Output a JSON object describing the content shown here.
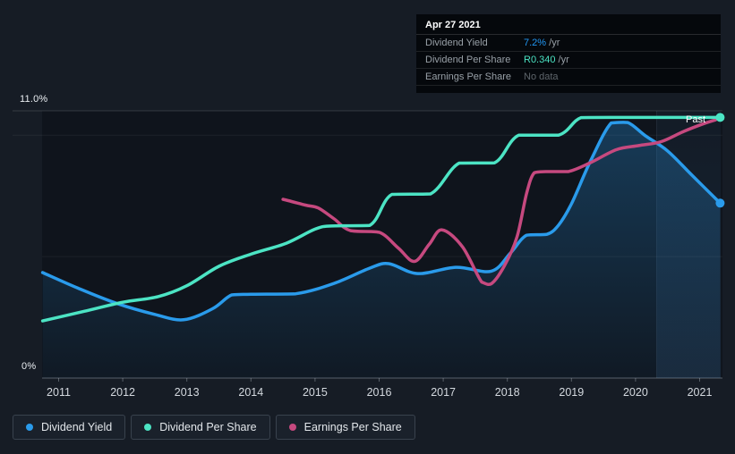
{
  "tooltip": {
    "date": "Apr 27 2021",
    "rows": [
      {
        "label": "Dividend Yield",
        "value": "7.2%",
        "unit": " /yr",
        "value_color": "#2196f3"
      },
      {
        "label": "Dividend Per Share",
        "value": "R0.340",
        "unit": " /yr",
        "value_color": "#4be3c3"
      },
      {
        "label": "Earnings Per Share",
        "value": "No data",
        "unit": "",
        "value_color": "#5e656b"
      }
    ]
  },
  "axis": {
    "y_top_label": "11.0%",
    "y_bottom_label": "0%"
  },
  "past_label": "Past",
  "legend": {
    "items": [
      {
        "label": "Dividend Yield",
        "color": "#2a9beb"
      },
      {
        "label": "Dividend Per Share",
        "color": "#4ce4c4"
      },
      {
        "label": "Earnings Per Share",
        "color": "#c6497f"
      }
    ]
  },
  "chart_data": {
    "type": "line",
    "xlim": [
      2010.75,
      2021.33
    ],
    "ylim": [
      0,
      11
    ],
    "x_ticks": [
      2011,
      2012,
      2013,
      2014,
      2015,
      2016,
      2017,
      2018,
      2019,
      2020,
      2021
    ],
    "y_axis_unit": "%",
    "grid": true,
    "legend_position": "bottom-left",
    "gridlines": [
      {
        "pct": 11,
        "strong": true,
        "x_from": 14
      },
      {
        "pct": 10,
        "strong": false,
        "x_from": 14
      },
      {
        "pct": 5,
        "strong": false,
        "x_from": 47
      },
      {
        "pct": 0,
        "axis": true,
        "x_from": 47
      }
    ],
    "highlight_band": {
      "from_year": 2020.33,
      "to_year": 2021.33
    },
    "series": [
      {
        "name": "Dividend Yield",
        "color": "#2a9beb",
        "area": true,
        "end_dot": true,
        "end_value": "7.2% /yr",
        "points": [
          [
            2010.75,
            4.34
          ],
          [
            2011.3,
            3.7
          ],
          [
            2011.9,
            3.08
          ],
          [
            2012.5,
            2.62
          ],
          [
            2012.95,
            2.4
          ],
          [
            2013.4,
            2.85
          ],
          [
            2013.7,
            3.42
          ],
          [
            2014.0,
            3.45
          ],
          [
            2014.7,
            3.47
          ],
          [
            2015.3,
            3.9
          ],
          [
            2015.85,
            4.52
          ],
          [
            2016.15,
            4.71
          ],
          [
            2016.6,
            4.3
          ],
          [
            2017.2,
            4.56
          ],
          [
            2017.75,
            4.4
          ],
          [
            2018.05,
            5.15
          ],
          [
            2018.3,
            5.88
          ],
          [
            2018.62,
            5.92
          ],
          [
            2018.8,
            6.3
          ],
          [
            2019.0,
            7.17
          ],
          [
            2019.3,
            8.95
          ],
          [
            2019.62,
            10.5
          ],
          [
            2019.88,
            10.52
          ],
          [
            2020.15,
            9.98
          ],
          [
            2020.5,
            9.35
          ],
          [
            2020.88,
            8.35
          ],
          [
            2021.32,
            7.2
          ]
        ]
      },
      {
        "name": "Dividend Per Share",
        "color": "#4ce4c4",
        "area": false,
        "end_dot": true,
        "end_value": "R0.340 /yr",
        "points": [
          [
            2010.75,
            2.35
          ],
          [
            2011.4,
            2.75
          ],
          [
            2012.0,
            3.12
          ],
          [
            2012.55,
            3.35
          ],
          [
            2013.0,
            3.8
          ],
          [
            2013.5,
            4.6
          ],
          [
            2014.0,
            5.1
          ],
          [
            2014.55,
            5.55
          ],
          [
            2015.0,
            6.13
          ],
          [
            2015.25,
            6.26
          ],
          [
            2015.85,
            6.28
          ],
          [
            2016.2,
            7.56
          ],
          [
            2016.8,
            7.58
          ],
          [
            2017.25,
            8.85
          ],
          [
            2017.8,
            8.86
          ],
          [
            2018.18,
            10.0
          ],
          [
            2018.8,
            10.0
          ],
          [
            2019.15,
            10.72
          ],
          [
            2019.6,
            10.73
          ],
          [
            2020.4,
            10.73
          ],
          [
            2021.32,
            10.73
          ]
        ]
      },
      {
        "name": "Earnings Per Share",
        "color": "#c6497f",
        "area": false,
        "end_dot": false,
        "end_value": "No data",
        "points": [
          [
            2014.5,
            7.36
          ],
          [
            2014.85,
            7.12
          ],
          [
            2015.05,
            7.0
          ],
          [
            2015.3,
            6.55
          ],
          [
            2015.55,
            6.07
          ],
          [
            2016.0,
            6.0
          ],
          [
            2016.3,
            5.35
          ],
          [
            2016.55,
            4.8
          ],
          [
            2016.78,
            5.5
          ],
          [
            2016.98,
            6.1
          ],
          [
            2017.3,
            5.4
          ],
          [
            2017.6,
            3.95
          ],
          [
            2017.75,
            3.88
          ],
          [
            2017.95,
            4.6
          ],
          [
            2018.15,
            5.8
          ],
          [
            2018.3,
            7.6
          ],
          [
            2018.42,
            8.45
          ],
          [
            2018.6,
            8.5
          ],
          [
            2018.95,
            8.5
          ],
          [
            2019.3,
            8.87
          ],
          [
            2019.7,
            9.4
          ],
          [
            2020.05,
            9.57
          ],
          [
            2020.4,
            9.73
          ],
          [
            2020.75,
            10.15
          ],
          [
            2021.05,
            10.46
          ],
          [
            2021.25,
            10.63
          ]
        ]
      }
    ]
  }
}
